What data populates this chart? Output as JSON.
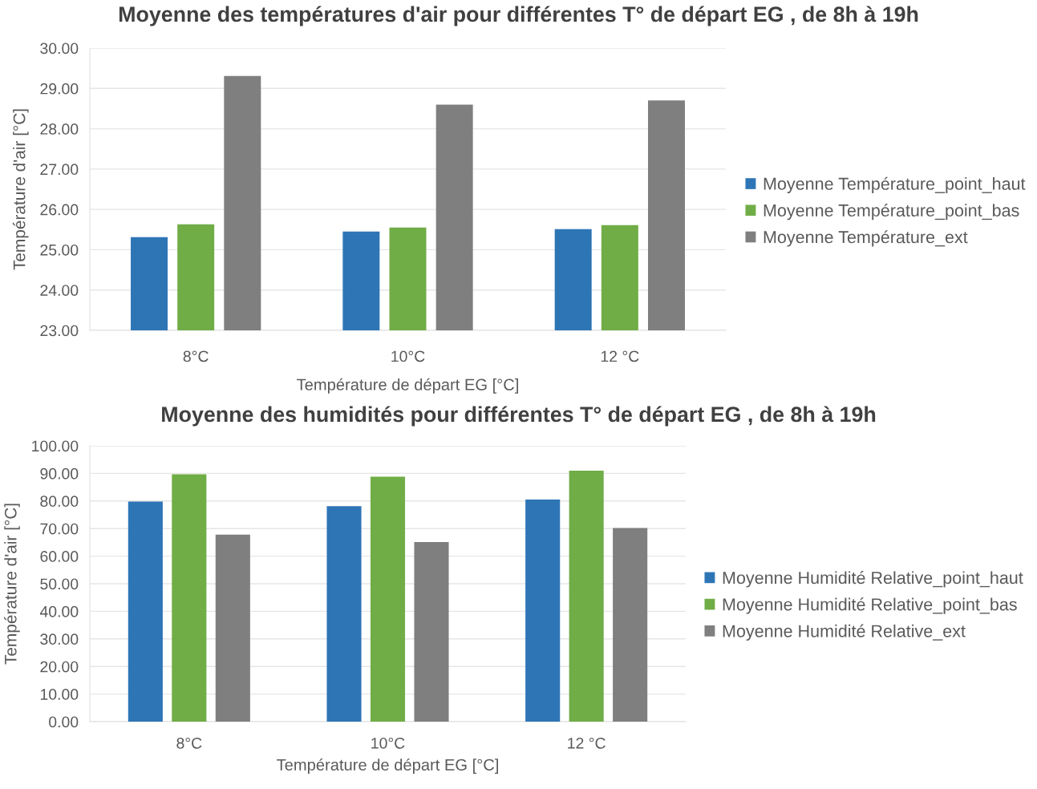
{
  "chart_data": [
    {
      "type": "bar",
      "title": "Moyenne des températures d'air pour différentes T° de départ EG , de 8h à 19h",
      "xlabel": "Température de départ EG [°C]",
      "ylabel": "Température d'air [°C]",
      "categories": [
        "8°C",
        "10°C",
        "12 °C"
      ],
      "series": [
        {
          "name": "Moyenne Température_point_haut",
          "color": "#2e75b6",
          "values": [
            25.31,
            25.45,
            25.51
          ]
        },
        {
          "name": "Moyenne Température_point_bas",
          "color": "#70ad47",
          "values": [
            25.63,
            25.55,
            25.61
          ]
        },
        {
          "name": "Moyenne Température_ext",
          "color": "#7f7f7f",
          "values": [
            29.31,
            28.6,
            28.7
          ]
        }
      ],
      "ylim": [
        23,
        30
      ],
      "yticks": [
        {
          "value": 23,
          "label": "23.00"
        },
        {
          "value": 24,
          "label": "24.00"
        },
        {
          "value": 25,
          "label": "25.00"
        },
        {
          "value": 26,
          "label": "26.00"
        },
        {
          "value": 27,
          "label": "27.00"
        },
        {
          "value": 28,
          "label": "28.00"
        },
        {
          "value": 29,
          "label": "29.00"
        },
        {
          "value": 30,
          "label": "30.00"
        }
      ],
      "grid": "y",
      "legend": "right"
    },
    {
      "type": "bar",
      "title": "Moyenne des humidités pour différentes T° de départ EG , de 8h à 19h",
      "xlabel": "Température de départ EG [°C]",
      "ylabel": "Température d'air [°C]",
      "categories": [
        "8°C",
        "10°C",
        "12 °C"
      ],
      "series": [
        {
          "name": "Moyenne Humidité Relative_point_haut",
          "color": "#2e75b6",
          "values": [
            79.8,
            78.1,
            80.5
          ]
        },
        {
          "name": "Moyenne Humidité Relative_point_bas",
          "color": "#70ad47",
          "values": [
            89.7,
            88.8,
            91.0
          ]
        },
        {
          "name": "Moyenne Humidité Relative_ext",
          "color": "#7f7f7f",
          "values": [
            67.8,
            65.1,
            70.2
          ]
        }
      ],
      "ylim": [
        0,
        100
      ],
      "yticks": [
        {
          "value": 0,
          "label": "0.00"
        },
        {
          "value": 10,
          "label": "10.00"
        },
        {
          "value": 20,
          "label": "20.00"
        },
        {
          "value": 30,
          "label": "30.00"
        },
        {
          "value": 40,
          "label": "40.00"
        },
        {
          "value": 50,
          "label": "50.00"
        },
        {
          "value": 60,
          "label": "60.00"
        },
        {
          "value": 70,
          "label": "70.00"
        },
        {
          "value": 80,
          "label": "80.00"
        },
        {
          "value": 90,
          "label": "90.00"
        },
        {
          "value": 100,
          "label": "100.00"
        }
      ],
      "grid": "y",
      "legend": "right"
    }
  ]
}
